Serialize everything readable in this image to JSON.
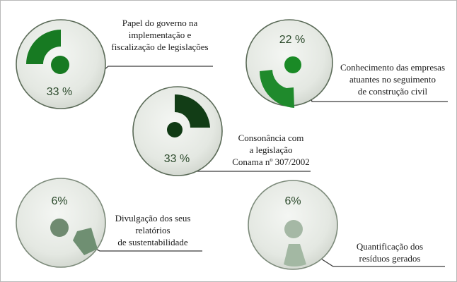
{
  "items": [
    {
      "id": "papel",
      "percent": "33 %",
      "lines": [
        "Papel do governo na",
        "implementação e",
        "fiscalização de legislações"
      ],
      "color": "#177a22",
      "dot": "#177a22",
      "fraction": 0.33
    },
    {
      "id": "conhecimento",
      "percent": "22 %",
      "lines": [
        "Conhecimento das empresas",
        "atuantes no seguimento",
        "de construção civil"
      ],
      "color": "#1f8a2c",
      "dot": "#1a8a26",
      "fraction": 0.22
    },
    {
      "id": "consonancia",
      "percent": "33 %",
      "lines": [
        "Consonância com",
        "a legislação",
        "Conama nº 307/2002"
      ],
      "color": "#123d16",
      "dot": "#103a14",
      "fraction": 0.33
    },
    {
      "id": "divulgacao",
      "percent": "6%",
      "lines": [
        "Divulgação dos seus",
        "relatórios",
        "de sustentabilidade"
      ],
      "color": "#6f8f72",
      "dot": "#6f8a70",
      "fraction": 0.06
    },
    {
      "id": "quantificacao",
      "percent": "6%",
      "lines": [
        "Quantificação dos",
        "resíduos gerados"
      ],
      "color": "#a3b8a3",
      "dot": "#a5b8a5",
      "fraction": 0.06
    }
  ]
}
